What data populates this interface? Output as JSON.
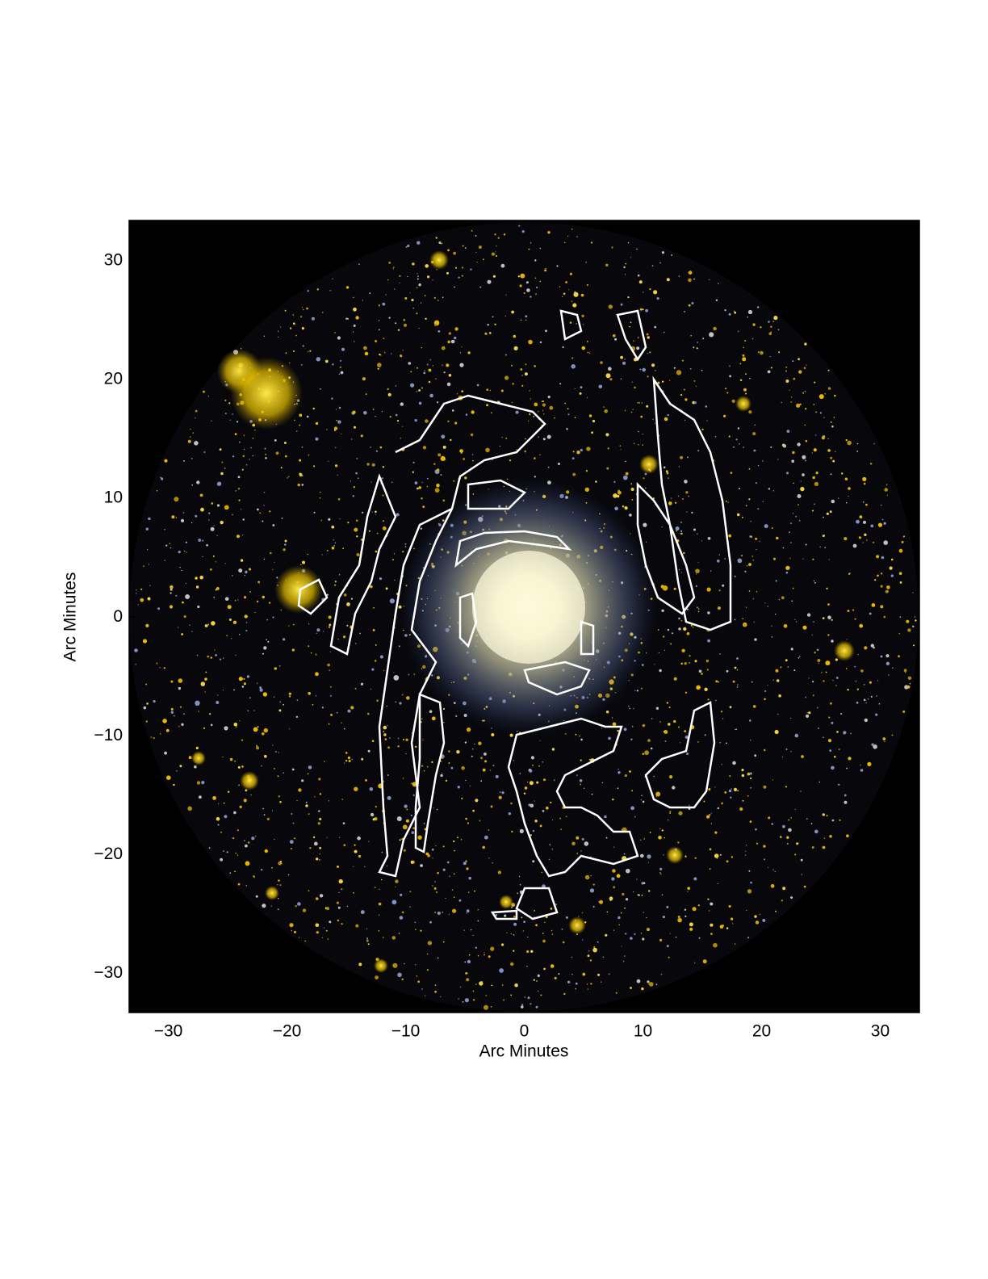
{
  "chart_data": {
    "type": "image",
    "xlabel": "Arc Minutes",
    "ylabel": "Arc Minutes",
    "xlim": [
      -33.3,
      33.3
    ],
    "ylim": [
      -33.3,
      33.4
    ],
    "xticks": [
      {
        "value": -30,
        "label": "−30"
      },
      {
        "value": -20,
        "label": "−20"
      },
      {
        "value": -10,
        "label": "−10"
      },
      0,
      10,
      20,
      30
    ],
    "yticks": [
      {
        "value": -30,
        "label": "−30"
      },
      {
        "value": -20,
        "label": "−20"
      },
      {
        "value": -10,
        "label": "−10"
      },
      0,
      10,
      20,
      30
    ]
  }
}
